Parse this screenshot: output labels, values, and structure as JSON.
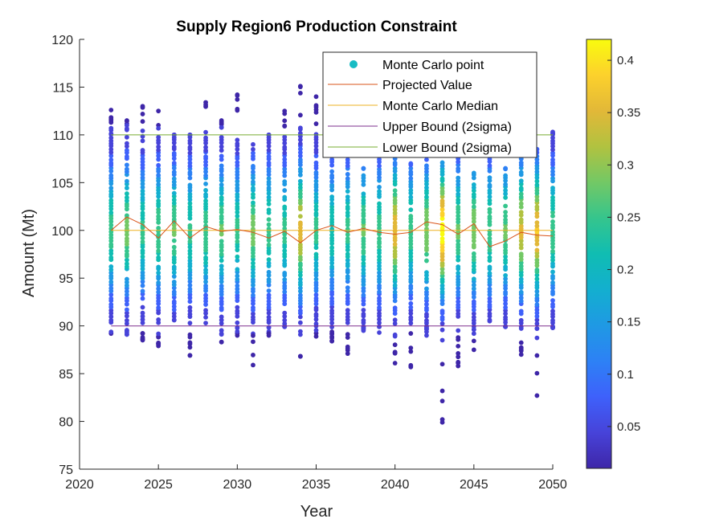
{
  "chart_data": {
    "type": "scatter",
    "title": "Supply Region6 Production Constraint",
    "xlabel": "Year",
    "ylabel": "Amount (Mt)",
    "xlim": [
      2020,
      2050
    ],
    "ylim": [
      75,
      120
    ],
    "xticks": [
      2020,
      2025,
      2030,
      2035,
      2040,
      2045,
      2050
    ],
    "yticks": [
      75,
      80,
      85,
      90,
      95,
      100,
      105,
      110,
      115,
      120
    ],
    "years": [
      2022,
      2023,
      2024,
      2025,
      2026,
      2027,
      2028,
      2029,
      2030,
      2031,
      2032,
      2033,
      2034,
      2035,
      2036,
      2037,
      2038,
      2039,
      2040,
      2041,
      2042,
      2043,
      2044,
      2045,
      2046,
      2047,
      2048,
      2049,
      2050
    ],
    "legend": {
      "position": "top-right",
      "entries": [
        "Monte Carlo point",
        "Projected Value",
        "Monte Carlo Median",
        "Upper Bound (2sigma)",
        "Lower Bound (2sigma)"
      ]
    },
    "colorbar": {
      "range": [
        0.01,
        0.42
      ],
      "ticks": [
        "0.05",
        "0.1",
        "0.15",
        "0.2",
        "0.25",
        "0.3",
        "0.35",
        "0.4"
      ]
    },
    "series": [
      {
        "name": "Projected Value",
        "color": "#d95319",
        "x": [
          2022,
          2023,
          2024,
          2025,
          2026,
          2027,
          2028,
          2029,
          2030,
          2031,
          2032,
          2033,
          2034,
          2035,
          2036,
          2037,
          2038,
          2039,
          2040,
          2041,
          2042,
          2043,
          2044,
          2045,
          2046,
          2047,
          2048,
          2049,
          2050
        ],
        "y": [
          100.0,
          101.4,
          100.6,
          99.2,
          101.0,
          99.2,
          100.4,
          99.9,
          100.1,
          99.8,
          99.2,
          99.9,
          98.7,
          100.0,
          100.5,
          99.8,
          100.2,
          99.8,
          99.6,
          99.8,
          100.9,
          100.6,
          99.6,
          100.7,
          98.3,
          98.9,
          99.8,
          99.5,
          99.4
        ]
      },
      {
        "name": "Monte Carlo Median",
        "color": "#edb120",
        "x": [
          2022,
          2050
        ],
        "y": [
          100.0,
          100.0
        ]
      },
      {
        "name": "Upper Bound (2sigma)",
        "color": "#7e2f8e",
        "x": [
          2022,
          2050
        ],
        "y": [
          90.0,
          90.0
        ]
      },
      {
        "name": "Lower Bound (2sigma)",
        "color": "#77ac30",
        "x": [
          2022,
          2050
        ],
        "y": [
          110.0,
          110.0
        ]
      }
    ],
    "monte_carlo": {
      "ymin": [
        89.2,
        89.1,
        88.5,
        87.9,
        90.6,
        86.9,
        90.3,
        88.3,
        89.0,
        85.9,
        89.0,
        89.9,
        86.8,
        88.9,
        88.4,
        87.1,
        89.5,
        89.3,
        86.1,
        85.7,
        89.0,
        79.9,
        85.8,
        87.5,
        90.5,
        89.9,
        87.0,
        82.7,
        89.8
      ],
      "ymax": [
        112.6,
        111.5,
        113.0,
        112.5,
        110.0,
        110.0,
        113.4,
        111.5,
        114.2,
        109.0,
        110.0,
        112.5,
        115.1,
        114.0,
        112.0,
        110.0,
        106.5,
        108.0,
        107.5,
        107.0,
        109.0,
        109.0,
        107.5,
        106.0,
        110.0,
        106.5,
        107.5,
        108.5,
        110.3
      ],
      "peak_density": [
        0.25,
        0.28,
        0.24,
        0.26,
        0.27,
        0.24,
        0.26,
        0.27,
        0.24,
        0.28,
        0.25,
        0.24,
        0.35,
        0.24,
        0.23,
        0.24,
        0.27,
        0.25,
        0.36,
        0.25,
        0.3,
        0.42,
        0.27,
        0.3,
        0.26,
        0.27,
        0.34,
        0.37,
        0.26
      ]
    }
  }
}
